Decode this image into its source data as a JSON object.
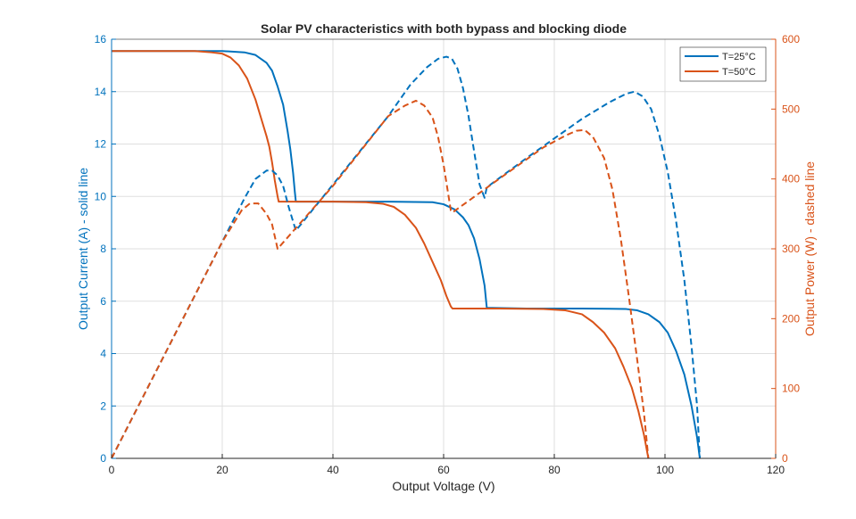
{
  "chart_data": {
    "type": "line",
    "title": "Solar PV characteristics with both bypass and blocking diode",
    "xlabel": "Output Voltage (V)",
    "ylabel_left": "Output Current (A) - solid line",
    "ylabel_right": "Output Power (W) - dashed line",
    "xlim": [
      0,
      120
    ],
    "ylim_left": [
      0,
      16
    ],
    "ylim_right": [
      0,
      600
    ],
    "xticks": [
      "0",
      "20",
      "40",
      "60",
      "80",
      "100",
      "120"
    ],
    "yticks_left": [
      "0",
      "2",
      "4",
      "6",
      "8",
      "10",
      "12",
      "14",
      "16"
    ],
    "yticks_right": [
      "0",
      "100",
      "200",
      "300",
      "400",
      "500",
      "600"
    ],
    "grid": true,
    "legend_position": "top-right",
    "colors": {
      "T25": "#0072BD",
      "T50": "#D95319",
      "axis_left": "#0072BD",
      "axis_right": "#D95319",
      "grid": "#dfdfdf"
    },
    "series": [
      {
        "name": "T=25°C",
        "axis": "left",
        "style": "solid",
        "color": "#0072BD",
        "x": [
          0,
          10,
          15,
          20,
          24,
          26,
          28,
          29,
          30,
          31,
          31.8,
          32.3,
          32.8,
          33.1,
          33.3,
          40,
          50,
          58,
          60,
          62,
          63.5,
          64.5,
          65.5,
          66.5,
          67.4,
          67.8,
          75,
          85,
          90,
          93,
          95,
          97,
          99,
          100.5,
          102,
          103.5,
          104.8,
          105.8,
          106.3
        ],
        "y": [
          15.55,
          15.55,
          15.55,
          15.55,
          15.5,
          15.4,
          15.1,
          14.8,
          14.2,
          13.5,
          12.5,
          11.8,
          10.9,
          10.2,
          9.8,
          9.8,
          9.8,
          9.78,
          9.7,
          9.5,
          9.2,
          8.9,
          8.4,
          7.6,
          6.6,
          5.75,
          5.72,
          5.72,
          5.71,
          5.7,
          5.65,
          5.5,
          5.2,
          4.8,
          4.1,
          3.2,
          2.0,
          0.8,
          0
        ]
      },
      {
        "name": "T=50°C",
        "axis": "left",
        "style": "solid",
        "color": "#D95319",
        "x": [
          0,
          10,
          15,
          18,
          20,
          21.5,
          23,
          24.5,
          26,
          27,
          28,
          28.5,
          29,
          29.5,
          30,
          30.2,
          40,
          46,
          49,
          51,
          53,
          55,
          56.5,
          58,
          59.5,
          60.5,
          61.3,
          61.6,
          70,
          78,
          82,
          85,
          87,
          89,
          91,
          92.5,
          94,
          95.2,
          96.2,
          97.0
        ],
        "y": [
          15.55,
          15.55,
          15.55,
          15.5,
          15.45,
          15.3,
          15.0,
          14.5,
          13.7,
          13.0,
          12.3,
          11.9,
          11.3,
          10.6,
          10.0,
          9.8,
          9.8,
          9.78,
          9.72,
          9.6,
          9.3,
          8.8,
          8.2,
          7.5,
          6.8,
          6.2,
          5.8,
          5.72,
          5.72,
          5.7,
          5.65,
          5.5,
          5.2,
          4.8,
          4.2,
          3.5,
          2.7,
          1.8,
          0.9,
          0
        ]
      },
      {
        "name": "T=25°C",
        "axis": "right",
        "style": "dashed",
        "color": "#0072BD",
        "x": [
          0,
          10,
          20,
          24,
          26,
          28,
          29,
          30,
          31,
          32,
          33.3,
          40,
          50,
          54,
          57,
          59,
          60.5,
          61.5,
          62.5,
          63.5,
          64.5,
          65.5,
          66.5,
          67.4,
          67.8,
          75,
          85,
          90,
          93,
          94.5,
          96,
          97.5,
          99,
          100.5,
          102,
          103.5,
          104.8,
          105.8,
          106.3
        ],
        "y": [
          0,
          155,
          310,
          372,
          400,
          412,
          412,
          405,
          390,
          360,
          326,
          392,
          490,
          535,
          560,
          572,
          575,
          572,
          558,
          530,
          490,
          440,
          392,
          373,
          388,
          430,
          486,
          510,
          522,
          525,
          518,
          500,
          462,
          410,
          340,
          255,
          160,
          75,
          0
        ]
      },
      {
        "name": "T=50°C",
        "axis": "right",
        "style": "dashed",
        "color": "#D95319",
        "x": [
          0,
          10,
          20,
          23.5,
          25,
          26.5,
          28,
          29,
          30,
          35,
          40,
          45,
          50,
          53,
          55,
          56.5,
          58,
          59,
          60,
          60.8,
          61.3,
          61.6,
          70,
          78,
          82,
          84,
          85.5,
          87,
          89,
          90.5,
          92,
          93.5,
          95,
          96.2,
          97.0
        ],
        "y": [
          0,
          155,
          310,
          355,
          365,
          365,
          350,
          335,
          300,
          345,
          390,
          440,
          490,
          505,
          512,
          505,
          488,
          460,
          420,
          380,
          355,
          352,
          400,
          445,
          462,
          469,
          470,
          460,
          430,
          385,
          315,
          230,
          140,
          65,
          0
        ]
      }
    ]
  }
}
